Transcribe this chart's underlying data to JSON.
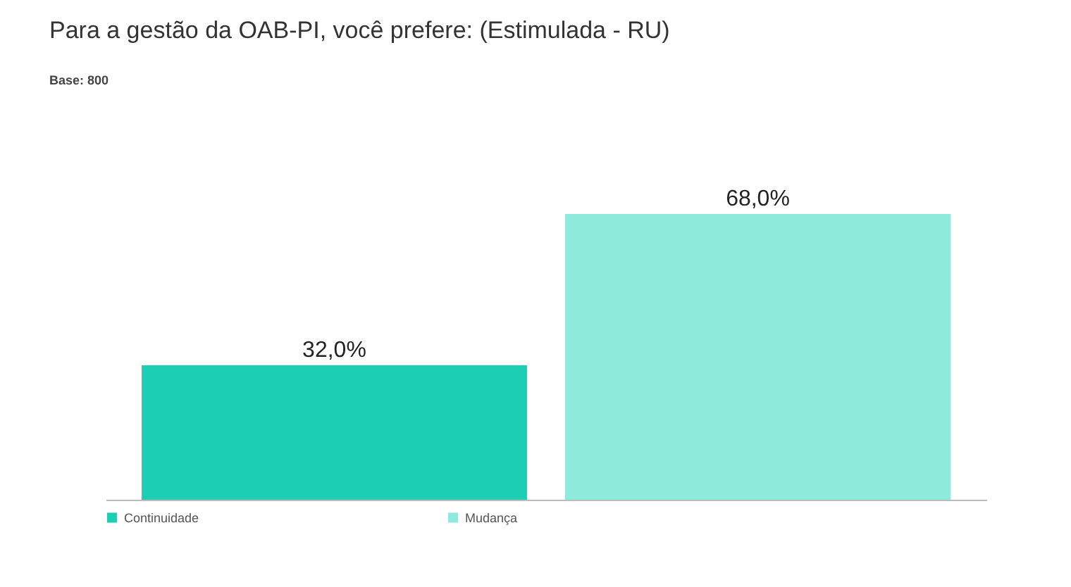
{
  "chart_data": {
    "type": "bar",
    "title": "Para a gestão da OAB-PI, você prefere: (Estimulada - RU)",
    "annotations": [
      "Base: 800"
    ],
    "categories": [
      null
    ],
    "series": [
      {
        "name": "Continuidade",
        "color": "#1ccfb4",
        "values": [
          32
        ],
        "value_labels": [
          "32,0%"
        ]
      },
      {
        "name": "Mudança",
        "color": "#8eeadb",
        "values": [
          68
        ],
        "value_labels": [
          "68,0%"
        ]
      }
    ],
    "tick_labels": false,
    "legend": "bottom"
  }
}
